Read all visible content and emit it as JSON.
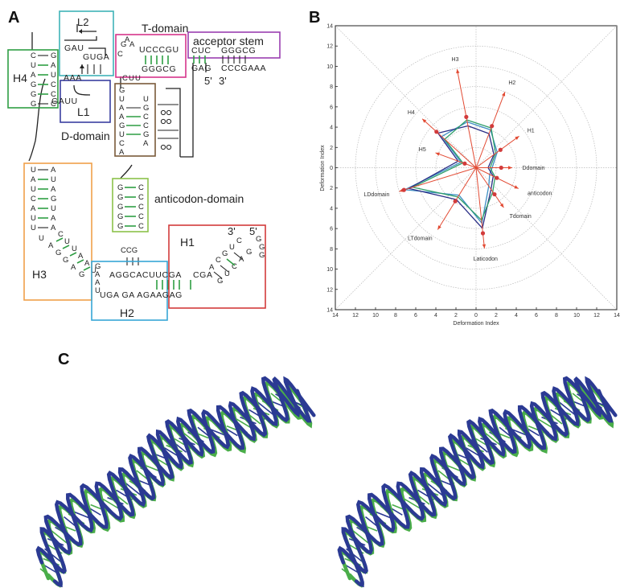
{
  "panels": {
    "a": "A",
    "b": "B",
    "c": "C"
  },
  "panel_a": {
    "boxes": [
      {
        "label": "L2",
        "color": "#3fb3b7"
      },
      {
        "label": "T-domain",
        "color": "#d6358a"
      },
      {
        "label": "acceptor stem",
        "color": "#9a3fb1"
      },
      {
        "label": "H4",
        "color": "#2f9e44"
      },
      {
        "label": "L1",
        "color": "#3a3fa0"
      },
      {
        "label": "D-domain",
        "color": "#7a5a3a"
      },
      {
        "label": "anticodon-domain",
        "color": "#8cc24a"
      },
      {
        "label": "H3",
        "color": "#f0a04a"
      },
      {
        "label": "H1",
        "color": "#d23b3b"
      },
      {
        "label": "H2",
        "color": "#37a6d6"
      }
    ],
    "end_labels": {
      "five_prime_top": "5'",
      "three_prime_top": "3'",
      "three_prime_h1": "3'",
      "five_prime_h1": "5'"
    },
    "sequences": {
      "t_loop_top": "UCCCGU",
      "t_loop_bottom": "GGGCG",
      "t_side": [
        "G",
        "A",
        "A",
        "C"
      ],
      "acc_top": "CUC",
      "acc_bottom": "GAG",
      "acc_top_right": "GGGCG",
      "acc_bottom_right": "CCCGAAA",
      "l2_top": "GAU",
      "l2_mid": "GUGA",
      "l1_mid": "AAA",
      "l1_low": "GAUU",
      "h4_left": [
        "C",
        "U",
        "A",
        "G",
        "G",
        "G"
      ],
      "h4_right": [
        "G",
        "A",
        "U",
        "C",
        "C",
        "C"
      ],
      "d_left": [
        "G",
        "U",
        "A",
        "A",
        "G",
        "U",
        "C",
        "A"
      ],
      "d_right": [
        "U",
        "G",
        "C",
        "C",
        "G",
        "A",
        "C",
        "G"
      ],
      "tu": [
        "C",
        "U",
        "U"
      ],
      "h3_left": [
        "U",
        "A",
        "U",
        "C",
        "A",
        "U",
        "U"
      ],
      "h3_right": [
        "A",
        "U",
        "A",
        "G",
        "U",
        "A",
        "A"
      ],
      "h3_diag_left": [
        "U",
        "A",
        "G",
        "G",
        "A",
        "G"
      ],
      "h3_diag_right": [
        "C",
        "U",
        "U",
        "A",
        "A",
        "U"
      ],
      "anti_left": [
        "G",
        "G",
        "G",
        "G",
        "G"
      ],
      "anti_right": [
        "C",
        "C",
        "C",
        "C",
        "C"
      ],
      "anti_loop": "CCG",
      "h2_top": "AGGCACUUCGA",
      "h2_bottom": "UGA GA AGAAGAG",
      "h2_side": [
        "G",
        "A",
        "A",
        "U"
      ],
      "h1_top": "CGA",
      "h1_diag_top": [
        "A",
        "C",
        "G",
        "U",
        "C"
      ],
      "h1_diag_bottom": [
        "G",
        "U",
        "C",
        "A",
        "G"
      ],
      "h1_tail": [
        "G",
        "G",
        "G"
      ]
    }
  },
  "chart_data": {
    "type": "radar",
    "title": "",
    "xlabel": "Deformation Index",
    "ylabel": "Deformation Index",
    "xlim": [
      -14,
      14
    ],
    "ylim": [
      -14,
      14
    ],
    "ticks": [
      14,
      12,
      10,
      8,
      6,
      4,
      2,
      0,
      2,
      4,
      6,
      8,
      10,
      12,
      14
    ],
    "radial_grid": [
      2,
      4,
      6,
      8,
      10,
      12
    ],
    "grid": true,
    "spokes": [
      {
        "label": "H3",
        "angle_deg": 101,
        "arrow": 9.9,
        "dot": 5.1
      },
      {
        "label": "H2",
        "angle_deg": 69,
        "arrow": 8.0,
        "dot": 4.4
      },
      {
        "label": "H1",
        "angle_deg": 36,
        "arrow": 5.3,
        "dot": 3.0
      },
      {
        "label": "Ddomain",
        "angle_deg": 0,
        "arrow": 3.6,
        "dot": 2.5
      },
      {
        "label": "anticodon",
        "angle_deg": -26,
        "arrow": 4.7,
        "dot": 2.3
      },
      {
        "label": "Tdomain",
        "angle_deg": -55,
        "arrow": 4.8,
        "dot": 3.2
      },
      {
        "label": "Laticodon",
        "angle_deg": -84,
        "arrow": 8.0,
        "dot": 6.5
      },
      {
        "label": "LTdomain",
        "angle_deg": -122,
        "arrow": 7.2,
        "dot": 3.9
      },
      {
        "label": "LDdomain",
        "angle_deg": -163,
        "arrow": 8.0,
        "dot": 7.5
      },
      {
        "label": "H5",
        "angle_deg": 160,
        "arrow": 4.3,
        "dot": 1.2
      },
      {
        "label": "H4",
        "angle_deg": 138,
        "arrow": 7.2,
        "dot": 5.3
      }
    ],
    "series": [
      {
        "values": [
          4.6,
          4.0,
          2.6,
          1.6,
          1.5,
          2.2,
          5.5,
          3.2,
          7.4,
          1.6,
          4.6
        ],
        "color": "#3f8fc4"
      },
      {
        "values": [
          4.2,
          3.6,
          2.2,
          1.2,
          1.9,
          2.6,
          6.0,
          3.7,
          7.0,
          1.9,
          5.1
        ],
        "color": "#2a2e86"
      },
      {
        "values": [
          4.8,
          4.2,
          2.4,
          1.4,
          2.1,
          2.9,
          5.2,
          3.4,
          6.6,
          1.4,
          4.2
        ],
        "color": "#2f9e6a"
      }
    ],
    "arrow_color": "#e24a33",
    "dot_color": "#d23b3b"
  },
  "panel_c": {
    "strand_colors": {
      "structure_1": "#2b3a93",
      "structure_2": "#4aad49"
    }
  }
}
